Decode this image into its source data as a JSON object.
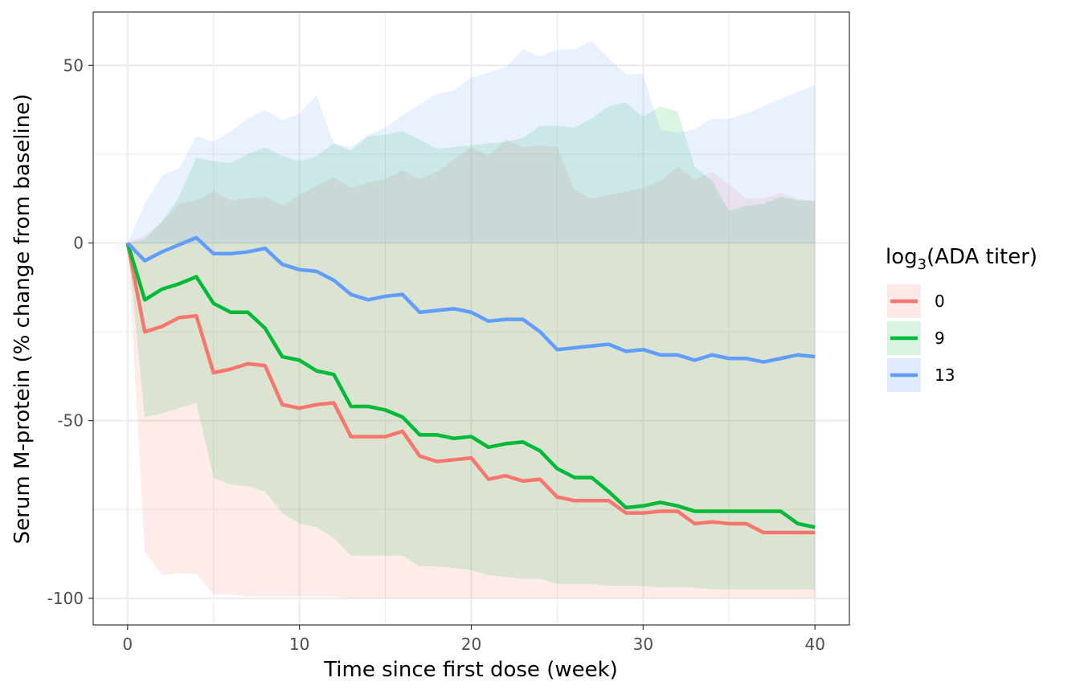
{
  "chart_data": {
    "type": "line",
    "title": "",
    "xlabel": "Time since first dose (week)",
    "ylabel": "Serum M-protein (% change from baseline)",
    "xlim": [
      -2,
      42
    ],
    "ylim": [
      -107.5,
      65
    ],
    "x_ticks": [
      0,
      10,
      20,
      30,
      40
    ],
    "y_ticks": [
      50,
      0,
      -50,
      -100
    ],
    "x_tick_labels": [
      "0",
      "10",
      "20",
      "30",
      "40"
    ],
    "y_tick_labels": [
      "50",
      "0",
      "-50",
      "-100"
    ],
    "grid": true,
    "legend": {
      "title_main": "log",
      "title_sub": "3",
      "title_rest": "(ADA titer)",
      "placement": "right"
    },
    "x": [
      0,
      1,
      2,
      3,
      4,
      5,
      6,
      7,
      8,
      9,
      10,
      11,
      12,
      13,
      14,
      15,
      16,
      17,
      18,
      19,
      20,
      21,
      22,
      23,
      24,
      25,
      26,
      27,
      28,
      29,
      30,
      31,
      32,
      33,
      34,
      35,
      36,
      37,
      38,
      39,
      40
    ],
    "series": [
      {
        "name": "0",
        "color": "#F8766D",
        "values": [
          0,
          -25,
          -23.5,
          -21,
          -20.5,
          -36.5,
          -35.5,
          -34,
          -34.5,
          -45.5,
          -46.5,
          -45.5,
          -45,
          -54.5,
          -54.5,
          -54.5,
          -53,
          -60,
          -61.5,
          -61,
          -60.5,
          -66.5,
          -65.5,
          -67,
          -66.5,
          -71.5,
          -72.5,
          -72.5,
          -72.5,
          -76,
          -76,
          -75.5,
          -75.5,
          -79,
          -78.5,
          -79,
          -79,
          -81.5,
          -81.5,
          -81.5,
          -81.5
        ],
        "lower": [
          0,
          -87,
          -93.5,
          -93,
          -93,
          -99,
          -99,
          -99.5,
          -99.5,
          -99.5,
          -99.5,
          -99.5,
          -99.5,
          -100,
          -100,
          -100,
          -100,
          -100,
          -100,
          -100,
          -100,
          -100,
          -100,
          -100,
          -100,
          -100,
          -100,
          -100,
          -100,
          -100,
          -100,
          -100,
          -100,
          -100,
          -100,
          -100,
          -100,
          -100,
          -100,
          -100,
          -100
        ],
        "upper": [
          0,
          2,
          6,
          11,
          12,
          14.5,
          12,
          12.5,
          13,
          10.5,
          13.5,
          16,
          18.5,
          15.5,
          17,
          18,
          20.5,
          18,
          20,
          23.5,
          27,
          24.5,
          29,
          27,
          27.5,
          27,
          15,
          12.5,
          13.5,
          14.5,
          15.5,
          17.5,
          21.5,
          18,
          20,
          16.5,
          12.5,
          12.5,
          14,
          12.5,
          11.5
        ]
      },
      {
        "name": "9",
        "color": "#00BA38",
        "values": [
          0,
          -16,
          -13,
          -11.5,
          -9.5,
          -17,
          -19.5,
          -19.5,
          -24,
          -32,
          -33,
          -36,
          -37,
          -46,
          -46,
          -47,
          -49,
          -54,
          -54,
          -55,
          -54.5,
          -57.5,
          -56.5,
          -56,
          -58.5,
          -63.5,
          -66,
          -66,
          -70,
          -74.5,
          -74,
          -73,
          -74,
          -75.5,
          -75.5,
          -75.5,
          -75.5,
          -75.5,
          -75.5,
          -79,
          -80
        ],
        "lower": [
          0,
          -49,
          -48,
          -46.5,
          -45,
          -66,
          -68,
          -68.5,
          -70,
          -76,
          -79,
          -80,
          -83,
          -88,
          -88,
          -88,
          -88,
          -91,
          -91,
          -91.5,
          -92,
          -93.5,
          -94,
          -94.5,
          -94.5,
          -96,
          -96,
          -96,
          -96.5,
          -96.5,
          -96.5,
          -97,
          -97,
          -97,
          -97.5,
          -97.5,
          -97.5,
          -97.5,
          -97.5,
          -97.5,
          -97.5
        ],
        "upper": [
          0,
          1,
          6,
          13,
          24,
          23,
          22.5,
          25,
          27,
          24.5,
          23,
          24.5,
          28,
          26,
          30,
          30.5,
          31.5,
          29,
          26.5,
          27,
          27.5,
          28,
          28.5,
          29.5,
          33,
          33,
          32.5,
          35,
          38.5,
          39.5,
          35.5,
          38.5,
          37,
          21.5,
          17.5,
          9,
          10.5,
          11,
          13,
          12,
          12
        ]
      },
      {
        "name": "13",
        "color": "#619CFF",
        "values": [
          0,
          -5,
          -2.5,
          -0.5,
          1.5,
          -3,
          -3,
          -2.5,
          -1.5,
          -6,
          -7.5,
          -8,
          -10.5,
          -14.5,
          -16,
          -15,
          -14.5,
          -19.5,
          -19,
          -18.5,
          -19.5,
          -22,
          -21.5,
          -21.5,
          -25,
          -30,
          -29.5,
          -29,
          -28.5,
          -30.5,
          -30,
          -31.5,
          -31.5,
          -33,
          -31.5,
          -32.5,
          -32.5,
          -33.5,
          -32.5,
          -31.5,
          -32
        ],
        "lower": [
          0,
          0,
          0,
          0,
          0,
          0,
          0,
          0,
          0,
          0,
          0,
          0,
          0,
          0,
          0,
          0,
          0,
          0,
          0,
          0,
          0,
          0,
          0,
          0,
          0,
          0,
          0,
          0,
          0,
          0,
          0,
          0,
          0,
          0,
          0,
          0,
          0,
          0,
          0,
          0,
          0
        ],
        "upper": [
          0,
          11,
          19,
          21,
          30,
          28.5,
          31.5,
          35,
          37.5,
          34.5,
          36.5,
          41.5,
          28,
          27,
          30.5,
          32.5,
          36,
          39,
          42,
          43,
          46.5,
          48,
          49.5,
          54.5,
          52.5,
          54.5,
          54.5,
          57,
          52,
          47.5,
          47.5,
          32,
          31,
          32,
          35,
          35,
          36.5,
          38.5,
          40.5,
          42.5,
          44.5
        ]
      }
    ],
    "ribbon_fill": [
      "#FCE9E8",
      "#D9F5E1",
      "#E1EBFF"
    ]
  }
}
